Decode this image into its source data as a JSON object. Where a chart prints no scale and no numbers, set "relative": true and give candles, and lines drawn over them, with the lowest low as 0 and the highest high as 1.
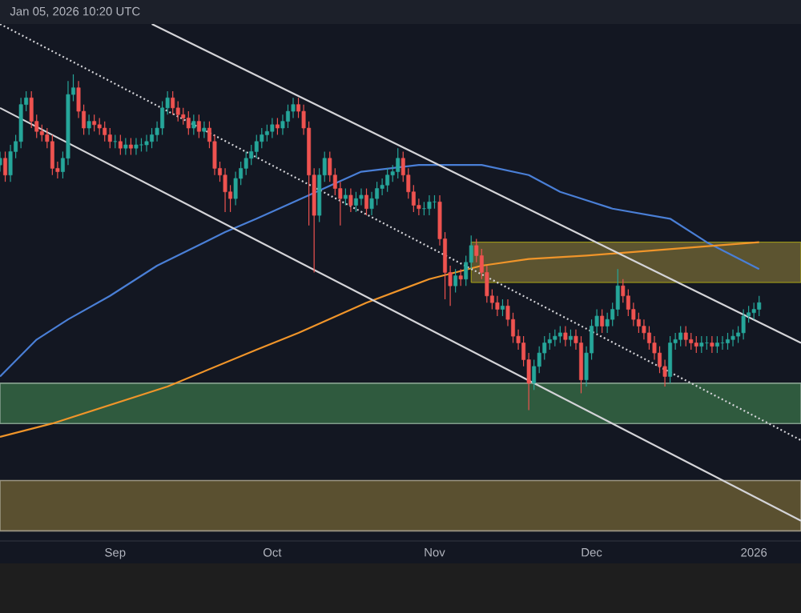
{
  "chart_data": {
    "type": "candlestick",
    "relative": true,
    "tick_labels": "x",
    "annotations": [
      "Jan 05, 2026 10:20 UTC"
    ],
    "xlim": [
      "2025-08-10",
      "2026-01-10"
    ],
    "xticks": [
      {
        "value": "2025-09-01",
        "label": "Sep"
      },
      {
        "value": "2025-10-01",
        "label": "Oct"
      },
      {
        "value": "2025-11-01",
        "label": "Nov"
      },
      {
        "value": "2025-12-01",
        "label": "Dec"
      },
      {
        "value": "2026-01-01",
        "label": "2026"
      }
    ],
    "x": [
      "2025-08-10",
      "2025-08-11",
      "2025-08-12",
      "2025-08-13",
      "2025-08-14",
      "2025-08-15",
      "2025-08-16",
      "2025-08-17",
      "2025-08-18",
      "2025-08-19",
      "2025-08-20",
      "2025-08-21",
      "2025-08-22",
      "2025-08-23",
      "2025-08-24",
      "2025-08-25",
      "2025-08-26",
      "2025-08-27",
      "2025-08-28",
      "2025-08-29",
      "2025-08-30",
      "2025-08-31",
      "2025-09-01",
      "2025-09-02",
      "2025-09-03",
      "2025-09-04",
      "2025-09-05",
      "2025-09-06",
      "2025-09-07",
      "2025-09-08",
      "2025-09-09",
      "2025-09-10",
      "2025-09-11",
      "2025-09-12",
      "2025-09-13",
      "2025-09-14",
      "2025-09-15",
      "2025-09-16",
      "2025-09-17",
      "2025-09-18",
      "2025-09-19",
      "2025-09-20",
      "2025-09-21",
      "2025-09-22",
      "2025-09-23",
      "2025-09-24",
      "2025-09-25",
      "2025-09-26",
      "2025-09-27",
      "2025-09-28",
      "2025-09-29",
      "2025-09-30",
      "2025-10-01",
      "2025-10-02",
      "2025-10-03",
      "2025-10-04",
      "2025-10-05",
      "2025-10-06",
      "2025-10-07",
      "2025-10-08",
      "2025-10-09",
      "2025-10-10",
      "2025-10-11",
      "2025-10-12",
      "2025-10-13",
      "2025-10-14",
      "2025-10-15",
      "2025-10-16",
      "2025-10-17",
      "2025-10-18",
      "2025-10-19",
      "2025-10-20",
      "2025-10-21",
      "2025-10-22",
      "2025-10-23",
      "2025-10-24",
      "2025-10-25",
      "2025-10-26",
      "2025-10-27",
      "2025-10-28",
      "2025-10-29",
      "2025-10-30",
      "2025-10-31",
      "2025-11-01",
      "2025-11-02",
      "2025-11-03",
      "2025-11-04",
      "2025-11-05",
      "2025-11-06",
      "2025-11-07",
      "2025-11-08",
      "2025-11-09",
      "2025-11-10",
      "2025-11-11",
      "2025-11-12",
      "2025-11-13",
      "2025-11-14",
      "2025-11-15",
      "2025-11-16",
      "2025-11-17",
      "2025-11-18",
      "2025-11-19",
      "2025-11-20",
      "2025-11-21",
      "2025-11-22",
      "2025-11-23",
      "2025-11-24",
      "2025-11-25",
      "2025-11-26",
      "2025-11-27",
      "2025-11-28",
      "2025-11-29",
      "2025-11-30",
      "2025-12-01",
      "2025-12-02",
      "2025-12-03",
      "2025-12-04",
      "2025-12-05",
      "2025-12-06",
      "2025-12-07",
      "2025-12-08",
      "2025-12-09",
      "2025-12-10",
      "2025-12-11",
      "2025-12-12",
      "2025-12-13",
      "2025-12-14",
      "2025-12-15",
      "2025-12-16",
      "2025-12-17",
      "2025-12-18",
      "2025-12-19",
      "2025-12-20",
      "2025-12-21",
      "2025-12-22",
      "2025-12-23",
      "2025-12-24",
      "2025-12-25",
      "2025-12-26",
      "2025-12-27",
      "2025-12-28",
      "2025-12-29",
      "2025-12-30",
      "2025-12-31",
      "2026-01-01",
      "2026-01-02"
    ],
    "ohlc": [
      [
        0.73,
        0.77,
        0.71,
        0.75
      ],
      [
        0.75,
        0.77,
        0.68,
        0.7
      ],
      [
        0.7,
        0.79,
        0.68,
        0.77
      ],
      [
        0.77,
        0.82,
        0.75,
        0.8
      ],
      [
        0.8,
        0.93,
        0.78,
        0.91
      ],
      [
        0.91,
        0.95,
        0.89,
        0.93
      ],
      [
        0.93,
        0.95,
        0.84,
        0.86
      ],
      [
        0.86,
        0.88,
        0.81,
        0.83
      ],
      [
        0.83,
        0.85,
        0.8,
        0.82
      ],
      [
        0.82,
        0.84,
        0.78,
        0.8
      ],
      [
        0.8,
        0.82,
        0.7,
        0.72
      ],
      [
        0.72,
        0.74,
        0.69,
        0.71
      ],
      [
        0.71,
        0.77,
        0.69,
        0.75
      ],
      [
        0.75,
        0.98,
        0.73,
        0.94
      ],
      [
        0.94,
        1,
        0.92,
        0.96
      ],
      [
        0.96,
        0.98,
        0.87,
        0.89
      ],
      [
        0.89,
        0.91,
        0.82,
        0.84
      ],
      [
        0.84,
        0.88,
        0.82,
        0.86
      ],
      [
        0.86,
        0.88,
        0.83,
        0.85
      ],
      [
        0.85,
        0.87,
        0.82,
        0.84
      ],
      [
        0.84,
        0.86,
        0.8,
        0.82
      ],
      [
        0.82,
        0.84,
        0.78,
        0.8
      ],
      [
        0.8,
        0.82,
        0.78,
        0.8
      ],
      [
        0.8,
        0.82,
        0.76,
        0.78
      ],
      [
        0.78,
        0.81,
        0.76,
        0.79
      ],
      [
        0.79,
        0.81,
        0.76,
        0.78
      ],
      [
        0.78,
        0.81,
        0.76,
        0.79
      ],
      [
        0.79,
        0.81,
        0.77,
        0.79
      ],
      [
        0.79,
        0.82,
        0.77,
        0.8
      ],
      [
        0.8,
        0.84,
        0.78,
        0.82
      ],
      [
        0.82,
        0.86,
        0.8,
        0.84
      ],
      [
        0.84,
        0.92,
        0.82,
        0.9
      ],
      [
        0.9,
        0.95,
        0.88,
        0.93
      ],
      [
        0.93,
        0.95,
        0.88,
        0.9
      ],
      [
        0.9,
        0.92,
        0.86,
        0.88
      ],
      [
        0.88,
        0.9,
        0.85,
        0.87
      ],
      [
        0.87,
        0.89,
        0.82,
        0.84
      ],
      [
        0.84,
        0.88,
        0.82,
        0.86
      ],
      [
        0.86,
        0.88,
        0.81,
        0.83
      ],
      [
        0.83,
        0.86,
        0.81,
        0.84
      ],
      [
        0.84,
        0.86,
        0.78,
        0.8
      ],
      [
        0.8,
        0.82,
        0.7,
        0.72
      ],
      [
        0.72,
        0.74,
        0.68,
        0.7
      ],
      [
        0.7,
        0.72,
        0.59,
        0.65
      ],
      [
        0.65,
        0.67,
        0.59,
        0.63
      ],
      [
        0.63,
        0.71,
        0.61,
        0.69
      ],
      [
        0.69,
        0.74,
        0.67,
        0.72
      ],
      [
        0.72,
        0.77,
        0.7,
        0.75
      ],
      [
        0.75,
        0.79,
        0.73,
        0.77
      ],
      [
        0.77,
        0.82,
        0.75,
        0.8
      ],
      [
        0.8,
        0.84,
        0.78,
        0.82
      ],
      [
        0.82,
        0.85,
        0.8,
        0.83
      ],
      [
        0.83,
        0.87,
        0.81,
        0.85
      ],
      [
        0.85,
        0.87,
        0.82,
        0.84
      ],
      [
        0.84,
        0.88,
        0.82,
        0.86
      ],
      [
        0.86,
        0.91,
        0.84,
        0.89
      ],
      [
        0.89,
        0.93,
        0.87,
        0.91
      ],
      [
        0.91,
        0.93,
        0.87,
        0.89
      ],
      [
        0.89,
        0.91,
        0.82,
        0.84
      ],
      [
        0.84,
        0.86,
        0.55,
        0.7
      ],
      [
        0.7,
        0.72,
        0.41,
        0.58
      ],
      [
        0.58,
        0.72,
        0.56,
        0.7
      ],
      [
        0.7,
        0.77,
        0.68,
        0.75
      ],
      [
        0.75,
        0.77,
        0.68,
        0.7
      ],
      [
        0.7,
        0.72,
        0.64,
        0.66
      ],
      [
        0.66,
        0.68,
        0.55,
        0.63
      ],
      [
        0.63,
        0.66,
        0.61,
        0.64
      ],
      [
        0.64,
        0.66,
        0.59,
        0.61
      ],
      [
        0.61,
        0.65,
        0.59,
        0.63
      ],
      [
        0.63,
        0.66,
        0.61,
        0.64
      ],
      [
        0.64,
        0.66,
        0.58,
        0.6
      ],
      [
        0.6,
        0.65,
        0.58,
        0.63
      ],
      [
        0.63,
        0.68,
        0.61,
        0.66
      ],
      [
        0.66,
        0.69,
        0.64,
        0.67
      ],
      [
        0.67,
        0.72,
        0.65,
        0.7
      ],
      [
        0.7,
        0.73,
        0.68,
        0.71
      ],
      [
        0.71,
        0.78,
        0.69,
        0.75
      ],
      [
        0.75,
        0.77,
        0.68,
        0.7
      ],
      [
        0.7,
        0.72,
        0.63,
        0.65
      ],
      [
        0.65,
        0.67,
        0.59,
        0.61
      ],
      [
        0.61,
        0.63,
        0.58,
        0.6
      ],
      [
        0.6,
        0.62,
        0.58,
        0.6
      ],
      [
        0.6,
        0.64,
        0.58,
        0.62
      ],
      [
        0.62,
        0.64,
        0.6,
        0.62
      ],
      [
        0.62,
        0.64,
        0.49,
        0.51
      ],
      [
        0.51,
        0.53,
        0.33,
        0.41
      ],
      [
        0.41,
        0.43,
        0.31,
        0.37
      ],
      [
        0.37,
        0.42,
        0.35,
        0.4
      ],
      [
        0.4,
        0.42,
        0.37,
        0.39
      ],
      [
        0.39,
        0.46,
        0.37,
        0.44
      ],
      [
        0.44,
        0.52,
        0.42,
        0.49
      ],
      [
        0.49,
        0.51,
        0.44,
        0.46
      ],
      [
        0.46,
        0.48,
        0.39,
        0.41
      ],
      [
        0.41,
        0.43,
        0.32,
        0.34
      ],
      [
        0.34,
        0.36,
        0.3,
        0.32
      ],
      [
        0.32,
        0.34,
        0.28,
        0.3
      ],
      [
        0.3,
        0.33,
        0.28,
        0.31
      ],
      [
        0.31,
        0.33,
        0.25,
        0.27
      ],
      [
        0.27,
        0.29,
        0.2,
        0.22
      ],
      [
        0.22,
        0.24,
        0.18,
        0.2
      ],
      [
        0.2,
        0.22,
        0.13,
        0.15
      ],
      [
        0.15,
        0.17,
        0,
        0.08
      ],
      [
        0.08,
        0.15,
        0.06,
        0.13
      ],
      [
        0.13,
        0.19,
        0.11,
        0.17
      ],
      [
        0.17,
        0.22,
        0.15,
        0.2
      ],
      [
        0.2,
        0.23,
        0.18,
        0.21
      ],
      [
        0.21,
        0.24,
        0.19,
        0.22
      ],
      [
        0.22,
        0.25,
        0.2,
        0.23
      ],
      [
        0.23,
        0.25,
        0.19,
        0.21
      ],
      [
        0.21,
        0.24,
        0.19,
        0.22
      ],
      [
        0.22,
        0.24,
        0.18,
        0.2
      ],
      [
        0.2,
        0.22,
        0.05,
        0.09
      ],
      [
        0.09,
        0.19,
        0.07,
        0.17
      ],
      [
        0.17,
        0.27,
        0.15,
        0.25
      ],
      [
        0.25,
        0.3,
        0.23,
        0.28
      ],
      [
        0.28,
        0.3,
        0.23,
        0.25
      ],
      [
        0.25,
        0.29,
        0.23,
        0.27
      ],
      [
        0.27,
        0.32,
        0.25,
        0.3
      ],
      [
        0.3,
        0.42,
        0.28,
        0.37
      ],
      [
        0.37,
        0.39,
        0.32,
        0.34
      ],
      [
        0.34,
        0.36,
        0.28,
        0.3
      ],
      [
        0.3,
        0.32,
        0.25,
        0.27
      ],
      [
        0.27,
        0.29,
        0.23,
        0.25
      ],
      [
        0.25,
        0.27,
        0.21,
        0.23
      ],
      [
        0.23,
        0.25,
        0.18,
        0.2
      ],
      [
        0.2,
        0.22,
        0.15,
        0.17
      ],
      [
        0.17,
        0.19,
        0.11,
        0.13
      ],
      [
        0.13,
        0.15,
        0.07,
        0.1
      ],
      [
        0.1,
        0.22,
        0.08,
        0.2
      ],
      [
        0.2,
        0.23,
        0.18,
        0.21
      ],
      [
        0.21,
        0.25,
        0.19,
        0.23
      ],
      [
        0.23,
        0.25,
        0.19,
        0.21
      ],
      [
        0.21,
        0.23,
        0.18,
        0.2
      ],
      [
        0.2,
        0.22,
        0.17,
        0.19
      ],
      [
        0.19,
        0.22,
        0.17,
        0.2
      ],
      [
        0.2,
        0.22,
        0.18,
        0.2
      ],
      [
        0.2,
        0.22,
        0.17,
        0.19
      ],
      [
        0.19,
        0.22,
        0.17,
        0.2
      ],
      [
        0.2,
        0.22,
        0.18,
        0.2
      ],
      [
        0.2,
        0.23,
        0.18,
        0.21
      ],
      [
        0.21,
        0.24,
        0.19,
        0.22
      ],
      [
        0.22,
        0.25,
        0.2,
        0.23
      ],
      [
        0.23,
        0.3,
        0.21,
        0.28
      ],
      [
        0.28,
        0.31,
        0.26,
        0.29
      ],
      [
        0.29,
        0.32,
        0.27,
        0.3
      ],
      [
        0.3,
        0.34,
        0.28,
        0.32
      ]
    ],
    "series": [
      {
        "type": "area",
        "color": "#5c5430",
        "x": [
          "2025-11-08",
          "2026-01-10"
        ],
        "values": [
          null,
          null
        ],
        "lower": [
          0.38,
          0.38
        ],
        "upper": [
          0.5,
          0.5
        ]
      },
      {
        "type": "line",
        "color": "#4a7fd6",
        "x": [
          "2025-08-10",
          "2025-08-17",
          "2025-08-23",
          "2025-08-31",
          "2025-09-09",
          "2025-09-22",
          "2025-09-28",
          "2025-10-08",
          "2025-10-18",
          "2025-10-29",
          "2025-11-10",
          "2025-11-19",
          "2025-11-25",
          "2025-12-05",
          "2025-12-16",
          "2025-12-23",
          "2026-01-02"
        ],
        "values": [
          0.1,
          0.21,
          0.27,
          0.34,
          0.43,
          0.53,
          0.57,
          0.64,
          0.71,
          0.73,
          0.73,
          0.7,
          0.65,
          0.6,
          0.57,
          0.5,
          0.42
        ]
      },
      {
        "type": "line",
        "color": "#f0952a",
        "x": [
          "2025-08-10",
          "2025-08-20",
          "2025-09-11",
          "2025-09-28",
          "2025-10-06",
          "2025-10-19",
          "2025-10-31",
          "2025-11-10",
          "2025-11-19",
          "2025-11-30",
          "2026-01-02"
        ],
        "values": [
          -0.08,
          -0.04,
          0.07,
          0.18,
          0.23,
          0.32,
          0.39,
          0.43,
          0.45,
          0.46,
          0.5
        ]
      },
      {
        "type": "line",
        "color": "#d4d4d8",
        "x": [
          "2025-09-08",
          "2026-01-10"
        ],
        "values": [
          1.15,
          0.2
        ]
      },
      {
        "type": "line",
        "color": "#d4d4d8",
        "line_style": "dotted",
        "x": [
          "2025-08-10",
          "2026-01-10"
        ],
        "values": [
          1.15,
          -0.09
        ]
      },
      {
        "type": "line",
        "color": "#d4d4d8",
        "x": [
          "2025-08-10",
          "2026-01-10"
        ],
        "values": [
          0.9,
          -0.33
        ]
      }
    ],
    "bands": [
      {
        "axis": "y",
        "from": -0.04,
        "to": 0.08,
        "color": "#2f5a3e"
      },
      {
        "axis": "y",
        "from": -0.36,
        "to": -0.21,
        "color": "#5a5030"
      }
    ]
  }
}
